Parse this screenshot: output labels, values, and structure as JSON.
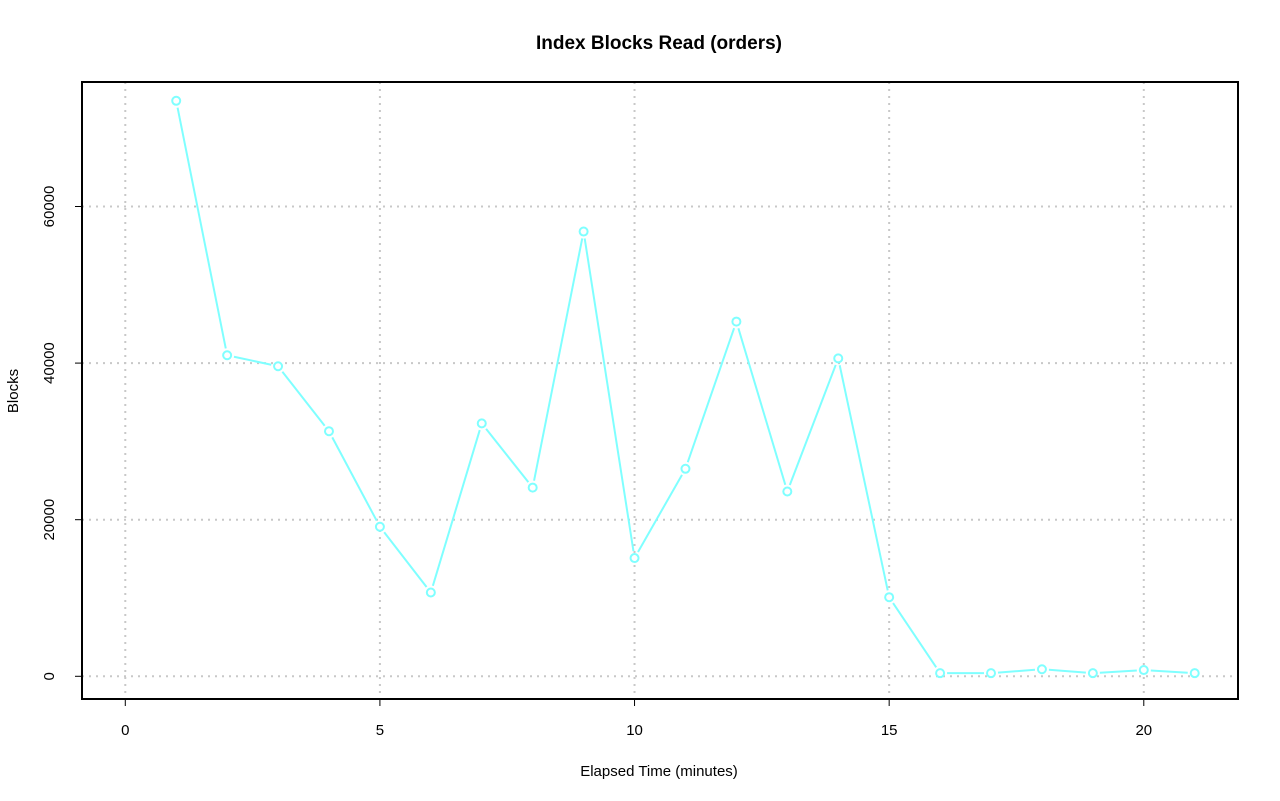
{
  "chart_data": {
    "type": "line",
    "title": "Index Blocks Read (orders)",
    "xlabel": "Elapsed Time (minutes)",
    "ylabel": "Blocks",
    "xlim": [
      -0.85,
      21.85
    ],
    "ylim": [
      -2900,
      75900
    ],
    "x_ticks": [
      0,
      5,
      10,
      15,
      20
    ],
    "y_ticks": [
      0,
      20000,
      40000,
      60000
    ],
    "grid": true,
    "color": "#7fffff",
    "series": [
      {
        "x": [
          1,
          2,
          3,
          4,
          5,
          6,
          7,
          8,
          9,
          10,
          11,
          12,
          13,
          14,
          15,
          16,
          17,
          18,
          19,
          20,
          21
        ],
        "values": [
          73500,
          41000,
          39600,
          31300,
          19100,
          10700,
          32300,
          24100,
          56800,
          15100,
          26500,
          45300,
          23600,
          40600,
          10100,
          400,
          400,
          900,
          400,
          800,
          400
        ]
      }
    ]
  }
}
